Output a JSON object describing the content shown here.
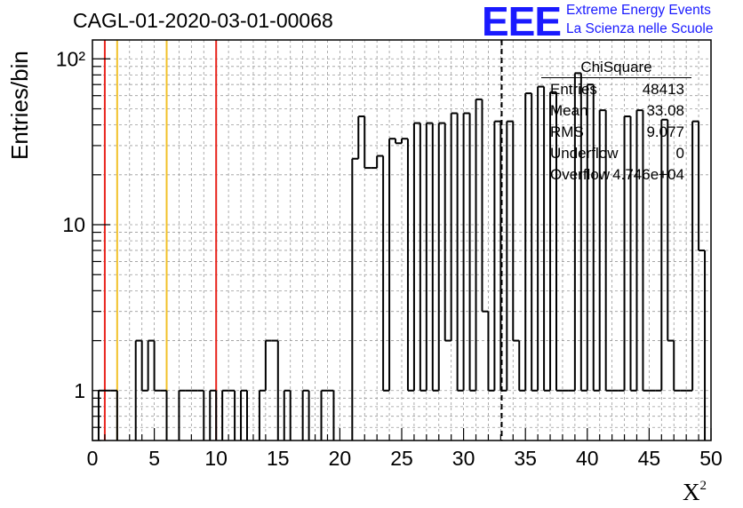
{
  "chart_data": {
    "type": "histogram",
    "title": "CAGL-01-2020-03-01-00068",
    "xlabel": "X",
    "xlabel_superscript": "2",
    "ylabel": "Entries/bin",
    "xlim": [
      0,
      50
    ],
    "ylim": [
      0.5,
      130
    ],
    "y_scale": "log",
    "grid": true,
    "x_ticks": [
      0,
      5,
      10,
      15,
      20,
      25,
      30,
      35,
      40,
      45,
      50
    ],
    "x_tick_labels": [
      "0",
      "5",
      "10",
      "15",
      "20",
      "25",
      "30",
      "35",
      "40",
      "45",
      "50"
    ],
    "y_ticks": [
      1,
      10,
      100
    ],
    "y_tick_labels": [
      "1",
      "10",
      "10²"
    ],
    "bin_width": 0.5,
    "bin_low_edges": [
      0.5,
      1.0,
      1.5,
      3.5,
      4.0,
      4.5,
      5.0,
      5.5,
      7.0,
      7.5,
      8.0,
      8.5,
      9.5,
      10.5,
      11.0,
      12.0,
      13.5,
      14.0,
      14.5,
      15.5,
      17.0,
      18.5,
      19.0,
      21.0,
      21.5,
      22.0,
      22.5,
      23.0,
      23.5,
      24.0,
      24.5,
      25.0,
      25.5,
      26.0,
      26.5,
      27.0,
      27.5,
      28.0,
      28.5,
      29.0,
      29.5,
      30.0,
      30.5,
      31.0,
      31.5,
      32.0,
      32.5,
      33.0,
      33.5,
      34.0,
      34.5,
      35.0,
      35.5,
      36.0,
      36.5,
      37.0,
      37.5,
      38.0,
      38.5,
      39.0,
      39.5,
      40.0,
      40.5,
      41.0,
      41.5,
      42.0,
      42.5,
      43.0,
      43.5,
      44.0,
      44.5,
      45.0,
      45.5,
      46.0,
      46.5,
      47.0,
      47.5,
      48.0,
      48.5,
      49.0
    ],
    "values": [
      1,
      1,
      1,
      2,
      1,
      2,
      1,
      1,
      1,
      1,
      1,
      1,
      1,
      1,
      1,
      1,
      1,
      2,
      2,
      1,
      1,
      1,
      1,
      25,
      45,
      22,
      22,
      26,
      1,
      33,
      31,
      33,
      1,
      41,
      1,
      41,
      1,
      41,
      2,
      47,
      1,
      47,
      1,
      57,
      3,
      1,
      42,
      1,
      42,
      2,
      1,
      62,
      1,
      68,
      1,
      63,
      1,
      1,
      1,
      82,
      1,
      70,
      1,
      49,
      1,
      1,
      1,
      45,
      1,
      49,
      1,
      1,
      1,
      43,
      2,
      1,
      1,
      1,
      42,
      7
    ]
  },
  "markers": {
    "red_lines_x": [
      1,
      10
    ],
    "orange_lines_x": [
      2,
      6
    ],
    "dashed_line_x": 33.08,
    "red_color": "#e8231c",
    "orange_color": "#f2c12a"
  },
  "logo": {
    "text": "EEE",
    "line1": "Extreme Energy Events",
    "line2": "La Scienza nelle Scuole",
    "color": "#1a1aff"
  },
  "stats_box": {
    "title": "ChiSquare",
    "rows": [
      {
        "key": "Entries",
        "value": "48413"
      },
      {
        "key": "Mean",
        "value": "33.08"
      },
      {
        "key": "RMS",
        "value": "9.077"
      },
      {
        "key": "Underflow",
        "value": "0"
      },
      {
        "key": "Overflow",
        "value": "4.746e+04"
      }
    ]
  }
}
